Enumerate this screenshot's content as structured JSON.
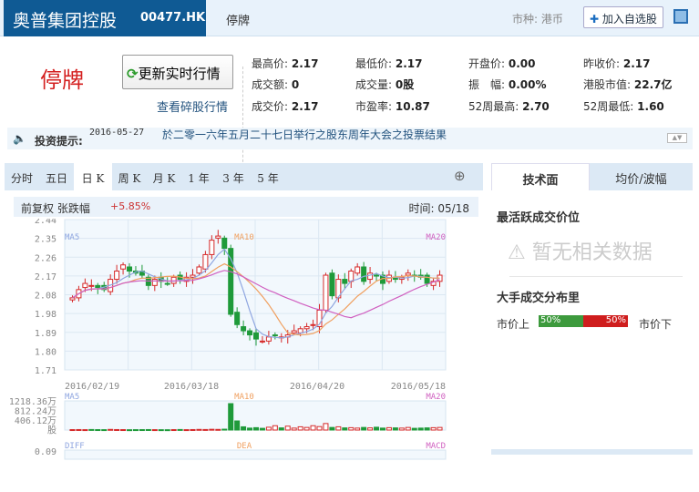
{
  "header": {
    "stock_name": "奥普集团控股",
    "stock_code": "00477.HK",
    "status": "停牌",
    "currency": "市种: 港币",
    "add_watchlist": "加入自选股",
    "add_icon": "plus-icon",
    "window_icon": "popout-window-icon"
  },
  "quote": {
    "halt_label": "停牌",
    "refresh_button": "更新实时行情",
    "odd_lot_link": "查看碎股行情",
    "fields": [
      {
        "label": "最高价:",
        "value": "2.17"
      },
      {
        "label": "最低价:",
        "value": "2.17"
      },
      {
        "label": "开盘价:",
        "value": "0.00"
      },
      {
        "label": "昨收价:",
        "value": "2.17"
      },
      {
        "label": "成交额:",
        "value": "0"
      },
      {
        "label": "成交量:",
        "value": "0股"
      },
      {
        "label": "振　幅:",
        "value": "0.00%"
      },
      {
        "label": "港股市值:",
        "value": "22.7亿"
      },
      {
        "label": "成交价:",
        "value": "2.17"
      },
      {
        "label": "市盈率:",
        "value": "10.87"
      },
      {
        "label": "52周最高:",
        "value": "2.70"
      },
      {
        "label": "52周最低:",
        "value": "1.60"
      }
    ]
  },
  "notice": {
    "label": "投资提示:",
    "date": "2016-05-27",
    "text": "於二零一六年五月二十七日举行之股东周年大会之投票结果"
  },
  "chart_tabs": [
    "分时",
    "五日",
    "日 K",
    "周 K",
    "月 K",
    "1 年",
    "3 年",
    "5 年"
  ],
  "active_tab": "日 K",
  "chart_info": {
    "adjust": "前复权",
    "change_label": "张跌幅",
    "change_value": "+5.85%",
    "time": "时间: 05/18"
  },
  "chart_data": {
    "type": "candlestick",
    "y_ticks": [
      "2.44",
      "2.35",
      "2.26",
      "2.17",
      "2.08",
      "1.98",
      "1.89",
      "1.80",
      "1.71"
    ],
    "ylim": [
      1.71,
      2.44
    ],
    "x_ticks": [
      "2016/02/19",
      "2016/03/18",
      "2016/04/20",
      "2016/05/18"
    ],
    "legend": [
      "MA5",
      "MA10",
      "MA20"
    ],
    "colors": {
      "up": "#d62a2a",
      "down": "#1f9a3a",
      "ma5": "#8fa6e0",
      "ma10": "#f0a060",
      "ma20": "#d060c0"
    },
    "closes": [
      2.06,
      2.1,
      2.13,
      2.12,
      2.11,
      2.1,
      2.15,
      2.19,
      2.22,
      2.19,
      2.18,
      2.17,
      2.12,
      2.15,
      2.14,
      2.13,
      2.16,
      2.15,
      2.16,
      2.17,
      2.21,
      2.27,
      2.34,
      2.36,
      2.3,
      1.98,
      1.93,
      1.9,
      1.88,
      1.86,
      1.85,
      1.87,
      1.88,
      1.87,
      1.88,
      1.9,
      1.91,
      1.92,
      1.93,
      2.0,
      2.17,
      2.07,
      2.15,
      2.13,
      2.19,
      2.21,
      2.14,
      2.18,
      2.17,
      2.13,
      2.17,
      2.15,
      2.16,
      2.18,
      2.17,
      2.16,
      2.13,
      2.14,
      2.17
    ],
    "volume_ticks": [
      "1218.36万",
      "812.24万",
      "406.12万",
      "股"
    ],
    "volume_wan": [
      20,
      22,
      18,
      25,
      20,
      18,
      30,
      22,
      20,
      15,
      18,
      20,
      22,
      18,
      16,
      15,
      20,
      25,
      18,
      22,
      30,
      25,
      35,
      30,
      40,
      1218,
      420,
      150,
      90,
      110,
      80,
      130,
      200,
      100,
      180,
      90,
      150,
      120,
      200,
      160,
      300,
      120,
      150,
      100,
      110,
      90,
      120,
      100,
      130,
      90,
      110,
      100,
      90,
      120,
      80,
      90,
      100,
      110,
      120
    ],
    "macd_labels": [
      "DIFF",
      "DEA",
      "MACD"
    ],
    "macd_top": "0.09"
  },
  "right_panel": {
    "tabs": [
      "技术面",
      "均价/波幅"
    ],
    "active_price_title": "最活跃成交价位",
    "no_data": "暂无相关数据",
    "big_trade_title": "大手成交分布里",
    "above_label": "市价上",
    "below_label": "市价下",
    "above_pct": "50%",
    "below_pct": "50%"
  }
}
